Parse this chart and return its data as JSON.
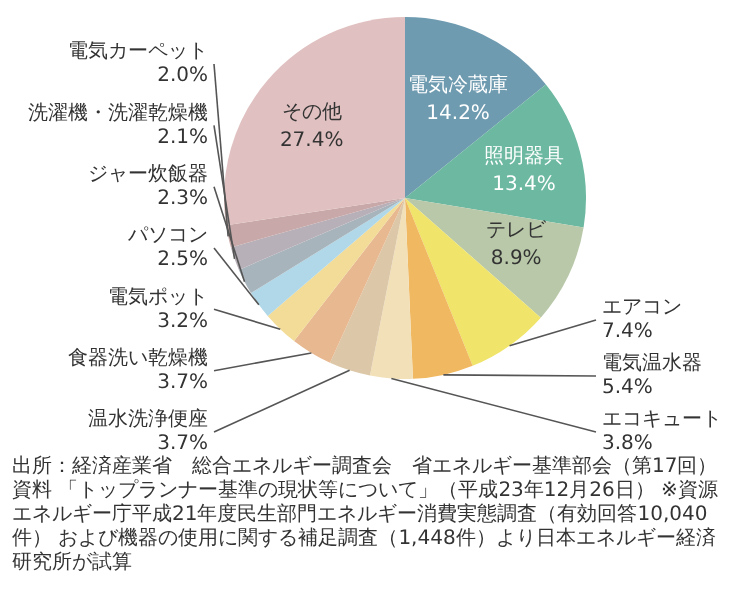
{
  "chart_data": {
    "type": "pie",
    "categories": [
      "電気冷蔵庫",
      "照明器具",
      "テレビ",
      "エアコン",
      "電気温水器",
      "エコキュート",
      "温水洗浄便座",
      "食器洗い乾燥機",
      "電気ポット",
      "パソコン",
      "ジャー炊飯器",
      "洗濯機・洗濯乾燥機",
      "電気カーペット",
      "その他"
    ],
    "values": [
      14.2,
      13.4,
      8.9,
      7.4,
      5.4,
      3.8,
      3.7,
      3.7,
      3.2,
      2.5,
      2.3,
      2.1,
      2.0,
      27.4
    ],
    "value_labels": [
      "14.2%",
      "13.4%",
      "8.9%",
      "7.4%",
      "5.4%",
      "3.8%",
      "3.7%",
      "3.7%",
      "3.2%",
      "2.5%",
      "2.3%",
      "2.1%",
      "2.0%",
      "27.4%"
    ],
    "colors": [
      "#6f9bb0",
      "#6cb8a0",
      "#b8c8a8",
      "#f0e46a",
      "#f0b860",
      "#f2e0b8",
      "#dcc8a8",
      "#e8b890",
      "#f2dc98",
      "#b0d8e8",
      "#a8b4bc",
      "#b8b0b8",
      "#c8a8a8",
      "#e0c0c0"
    ],
    "legend": false,
    "annotations": [
      "出所：経済産業省　総合エネルギー調査会　省エネルギー基準部会（第17回）資料",
      "「トップランナー基準の現状等について」（平成23年12月26日）",
      "※資源エネルギー庁平成21年度民生部門エネルギー消費実態調査（有効回答10,040件）",
      "および機器の使用に関する補足調査（1,448件）より日本エネルギー経済研究所が試算"
    ]
  }
}
